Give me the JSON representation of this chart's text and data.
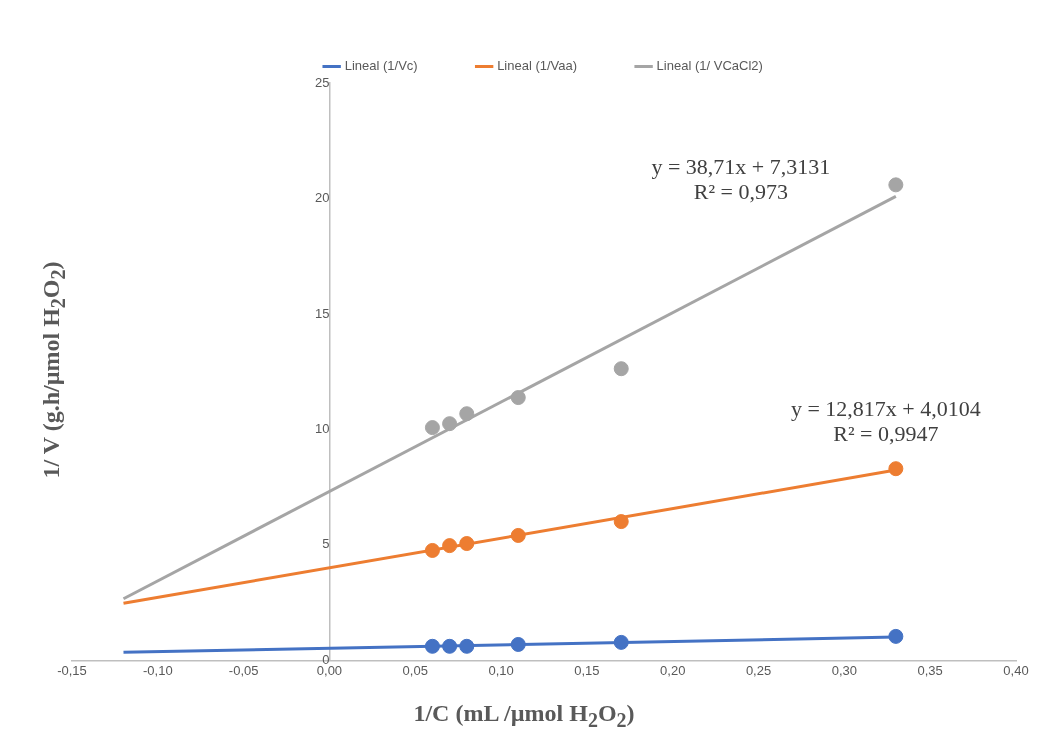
{
  "chart_data": {
    "type": "scatter",
    "xlabel": "1/C (mL /µmol H$_{2}$O$_{2}$)",
    "ylabel": "1/ V (g.h/µmol H$_{2}$O$_{2}$)",
    "xlim": [
      -0.15,
      0.4
    ],
    "xticks": [
      {
        "value": -0.15,
        "label": "-0,15"
      },
      {
        "value": -0.1,
        "label": "-0,10"
      },
      {
        "value": -0.05,
        "label": "-0,05"
      },
      {
        "value": 0,
        "label": "0,00"
      },
      {
        "value": 0.05,
        "label": "0,05"
      },
      {
        "value": 0.1,
        "label": "0,10"
      },
      {
        "value": 0.15,
        "label": "0,15"
      },
      {
        "value": 0.2,
        "label": "0,20"
      },
      {
        "value": 0.25,
        "label": "0,25"
      },
      {
        "value": 0.3,
        "label": "0,30"
      },
      {
        "value": 0.35,
        "label": "0,35"
      },
      {
        "value": 0.4,
        "label": "0,40"
      }
    ],
    "ylim": [
      0,
      25
    ],
    "yticks": [
      0,
      5,
      10,
      15,
      20,
      25
    ],
    "grid": false,
    "legend": "top",
    "marker": "circle",
    "series": [
      {
        "type": "scatter",
        "color": "#4472c4",
        "x": [
          0.06,
          0.07,
          0.08,
          0.11,
          0.17,
          0.33
        ],
        "values": [
          0.61,
          0.61,
          0.61,
          0.69,
          0.78,
          1.04
        ]
      },
      {
        "type": "scatter",
        "color": "#ed7d31",
        "x": [
          0.06,
          0.07,
          0.08,
          0.11,
          0.17,
          0.33
        ],
        "values": [
          4.76,
          4.97,
          5.06,
          5.41,
          6.01,
          8.3
        ]
      },
      {
        "type": "scatter",
        "color": "#a5a5a5",
        "x": [
          0.06,
          0.07,
          0.08,
          0.11,
          0.17,
          0.33
        ],
        "values": [
          10.08,
          10.25,
          10.68,
          11.38,
          12.63,
          20.59
        ]
      },
      {
        "type": "line",
        "name": "Lineal (1/Vc)",
        "color": "#4472c4",
        "marker": "none",
        "x": [
          -0.12,
          0.33
        ],
        "values": [
          0.35,
          1.01
        ]
      },
      {
        "type": "line",
        "name": "Lineal (1/Vaa)",
        "color": "#ed7d31",
        "marker": "none",
        "x": [
          -0.12,
          0.33
        ],
        "values": [
          2.47,
          8.24
        ]
      },
      {
        "type": "line",
        "name": "Lineal (1/ VCaCl2)",
        "color": "#a5a5a5",
        "marker": "none",
        "x": [
          -0.12,
          0.33
        ],
        "values": [
          2.67,
          20.09
        ]
      }
    ],
    "annotations": [
      "y = 38,71x + 7,3131\nR² = 0,973",
      "y = 12,817x + 4,0104\nR² = 0,9947"
    ]
  }
}
